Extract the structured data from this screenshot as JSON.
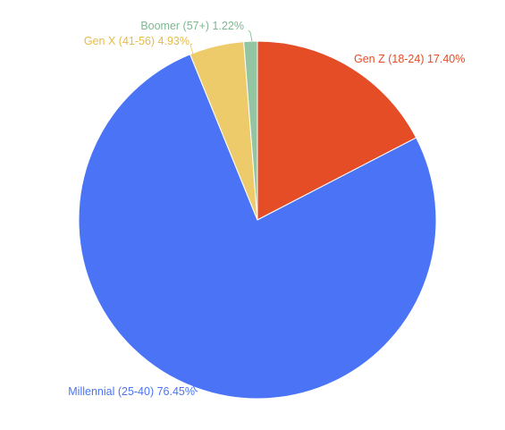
{
  "chart_data": {
    "type": "pie",
    "title": "",
    "legend": "none",
    "slices": [
      {
        "label": "Gen Z (18-24) 17.40%",
        "category": "Gen Z (18-24)",
        "value": 17.4,
        "color": "#e44d26"
      },
      {
        "label": "Millennial (25-40) 76.45%",
        "category": "Millennial (25-40)",
        "value": 76.45,
        "color": "#4a74f5"
      },
      {
        "label": "Gen X (41-56) 4.93%",
        "category": "Gen X (41-56)",
        "value": 4.93,
        "color": "#eecb6a"
      },
      {
        "label": "Boomer (57+) 1.22%",
        "category": "Boomer (57+)",
        "value": 1.22,
        "color": "#93c5a2"
      }
    ],
    "start_angle_deg": 0,
    "direction": "clockwise"
  }
}
